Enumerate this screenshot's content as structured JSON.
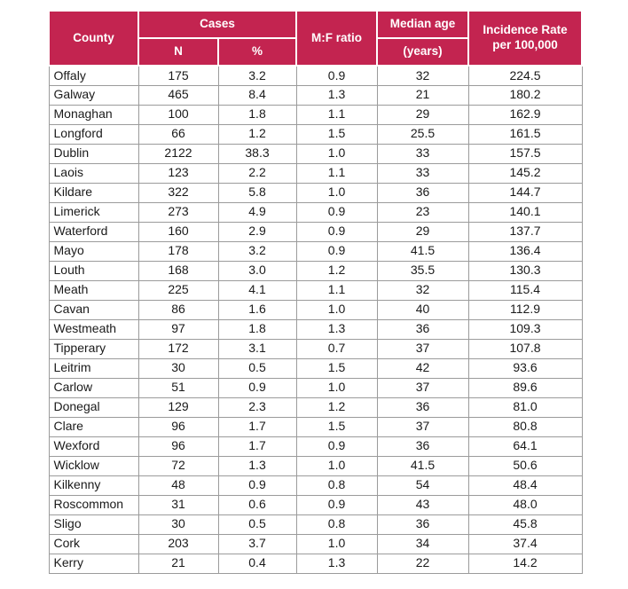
{
  "page": {
    "background": "#FFFFFF"
  },
  "colors": {
    "header_bg": "#C32450",
    "header_text": "#FFFFFF",
    "grid_border": "#9B9B9B",
    "body_text": "#1A1A1A"
  },
  "table": {
    "header": {
      "county": "County",
      "cases": "Cases",
      "cases_n": "N",
      "cases_pct": "%",
      "mf_ratio": "M:F ratio",
      "median_age": "Median age",
      "median_age_unit": "(years)",
      "incidence_line1": "Incidence Rate",
      "incidence_line2": "per 100,000"
    },
    "rows": [
      [
        "Offaly",
        "175",
        "3.2",
        "0.9",
        "32",
        "224.5"
      ],
      [
        "Galway",
        "465",
        "8.4",
        "1.3",
        "21",
        "180.2"
      ],
      [
        "Monaghan",
        "100",
        "1.8",
        "1.1",
        "29",
        "162.9"
      ],
      [
        "Longford",
        "66",
        "1.2",
        "1.5",
        "25.5",
        "161.5"
      ],
      [
        "Dublin",
        "2122",
        "38.3",
        "1.0",
        "33",
        "157.5"
      ],
      [
        "Laois",
        "123",
        "2.2",
        "1.1",
        "33",
        "145.2"
      ],
      [
        "Kildare",
        "322",
        "5.8",
        "1.0",
        "36",
        "144.7"
      ],
      [
        "Limerick",
        "273",
        "4.9",
        "0.9",
        "23",
        "140.1"
      ],
      [
        "Waterford",
        "160",
        "2.9",
        "0.9",
        "29",
        "137.7"
      ],
      [
        "Mayo",
        "178",
        "3.2",
        "0.9",
        "41.5",
        "136.4"
      ],
      [
        "Louth",
        "168",
        "3.0",
        "1.2",
        "35.5",
        "130.3"
      ],
      [
        "Meath",
        "225",
        "4.1",
        "1.1",
        "32",
        "115.4"
      ],
      [
        "Cavan",
        "86",
        "1.6",
        "1.0",
        "40",
        "112.9"
      ],
      [
        "Westmeath",
        "97",
        "1.8",
        "1.3",
        "36",
        "109.3"
      ],
      [
        "Tipperary",
        "172",
        "3.1",
        "0.7",
        "37",
        "107.8"
      ],
      [
        "Leitrim",
        "30",
        "0.5",
        "1.5",
        "42",
        "93.6"
      ],
      [
        "Carlow",
        "51",
        "0.9",
        "1.0",
        "37",
        "89.6"
      ],
      [
        "Donegal",
        "129",
        "2.3",
        "1.2",
        "36",
        "81.0"
      ],
      [
        "Clare",
        "96",
        "1.7",
        "1.5",
        "37",
        "80.8"
      ],
      [
        "Wexford",
        "96",
        "1.7",
        "0.9",
        "36",
        "64.1"
      ],
      [
        "Wicklow",
        "72",
        "1.3",
        "1.0",
        "41.5",
        "50.6"
      ],
      [
        "Kilkenny",
        "48",
        "0.9",
        "0.8",
        "54",
        "48.4"
      ],
      [
        "Roscommon",
        "31",
        "0.6",
        "0.9",
        "43",
        "48.0"
      ],
      [
        "Sligo",
        "30",
        "0.5",
        "0.8",
        "36",
        "45.8"
      ],
      [
        "Cork",
        "203",
        "3.7",
        "1.0",
        "34",
        "37.4"
      ],
      [
        "Kerry",
        "21",
        "0.4",
        "1.3",
        "22",
        "14.2"
      ]
    ]
  },
  "chart_data": {
    "type": "table",
    "columns": [
      "County",
      "Cases N",
      "Cases %",
      "M:F ratio",
      "Median age (years)",
      "Incidence Rate per 100,000"
    ],
    "rows": [
      [
        "Offaly",
        175,
        3.2,
        0.9,
        32,
        224.5
      ],
      [
        "Galway",
        465,
        8.4,
        1.3,
        21,
        180.2
      ],
      [
        "Monaghan",
        100,
        1.8,
        1.1,
        29,
        162.9
      ],
      [
        "Longford",
        66,
        1.2,
        1.5,
        25.5,
        161.5
      ],
      [
        "Dublin",
        2122,
        38.3,
        1.0,
        33,
        157.5
      ],
      [
        "Laois",
        123,
        2.2,
        1.1,
        33,
        145.2
      ],
      [
        "Kildare",
        322,
        5.8,
        1.0,
        36,
        144.7
      ],
      [
        "Limerick",
        273,
        4.9,
        0.9,
        23,
        140.1
      ],
      [
        "Waterford",
        160,
        2.9,
        0.9,
        29,
        137.7
      ],
      [
        "Mayo",
        178,
        3.2,
        0.9,
        41.5,
        136.4
      ],
      [
        "Louth",
        168,
        3.0,
        1.2,
        35.5,
        130.3
      ],
      [
        "Meath",
        225,
        4.1,
        1.1,
        32,
        115.4
      ],
      [
        "Cavan",
        86,
        1.6,
        1.0,
        40,
        112.9
      ],
      [
        "Westmeath",
        97,
        1.8,
        1.3,
        36,
        109.3
      ],
      [
        "Tipperary",
        172,
        3.1,
        0.7,
        37,
        107.8
      ],
      [
        "Leitrim",
        30,
        0.5,
        1.5,
        42,
        93.6
      ],
      [
        "Carlow",
        51,
        0.9,
        1.0,
        37,
        89.6
      ],
      [
        "Donegal",
        129,
        2.3,
        1.2,
        36,
        81.0
      ],
      [
        "Clare",
        96,
        1.7,
        1.5,
        37,
        80.8
      ],
      [
        "Wexford",
        96,
        1.7,
        0.9,
        36,
        64.1
      ],
      [
        "Wicklow",
        72,
        1.3,
        1.0,
        41.5,
        50.6
      ],
      [
        "Kilkenny",
        48,
        0.9,
        0.8,
        54,
        48.4
      ],
      [
        "Roscommon",
        31,
        0.6,
        0.9,
        43,
        48.0
      ],
      [
        "Sligo",
        30,
        0.5,
        0.8,
        36,
        45.8
      ],
      [
        "Cork",
        203,
        3.7,
        1.0,
        34,
        37.4
      ],
      [
        "Kerry",
        21,
        0.4,
        1.3,
        22,
        14.2
      ]
    ]
  }
}
